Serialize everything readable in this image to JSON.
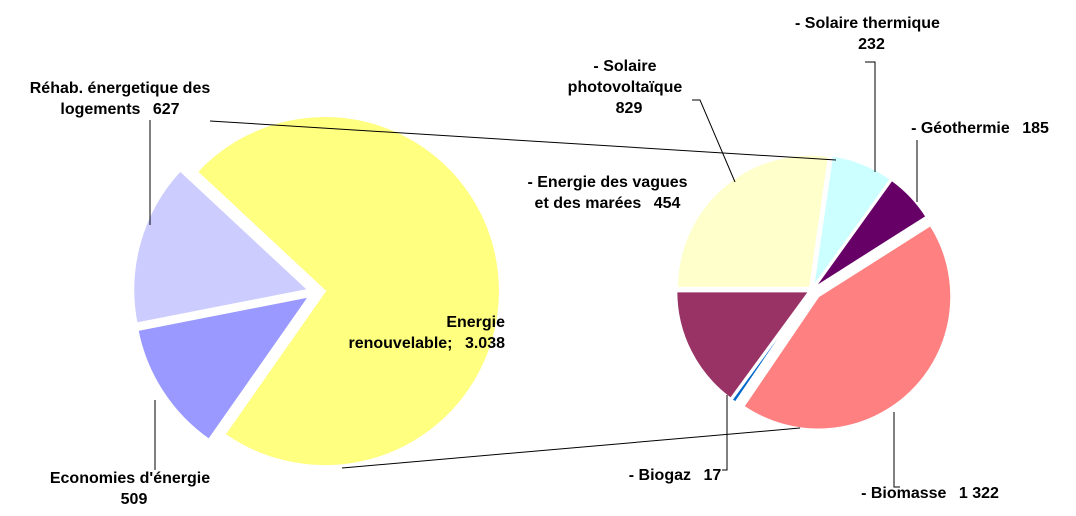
{
  "chart_data": [
    {
      "type": "pie",
      "categories": [
        "Energie renouvelable;",
        "Réhab. énergetique des logements",
        "Economies d'énergie"
      ],
      "values": [
        3038,
        627,
        509
      ],
      "value_labels": [
        "3.038",
        "627",
        "509"
      ],
      "colors": [
        "#ffff80",
        "#ccccff",
        "#9999ff"
      ]
    },
    {
      "type": "pie",
      "categories": [
        "- Solaire photovoltaïque",
        "- Solaire thermique",
        "- Géothermie",
        "- Biomasse",
        "- Biogaz",
        "- Energie des vagues et des marées"
      ],
      "values": [
        829,
        232,
        185,
        1322,
        17,
        454
      ],
      "value_labels": [
        "829",
        "232",
        "185",
        "1 322",
        "17",
        "454"
      ],
      "colors": [
        "#ffffcc",
        "#ccffff",
        "#660066",
        "#ff8080",
        "#0066cc",
        "#993366"
      ]
    }
  ]
}
